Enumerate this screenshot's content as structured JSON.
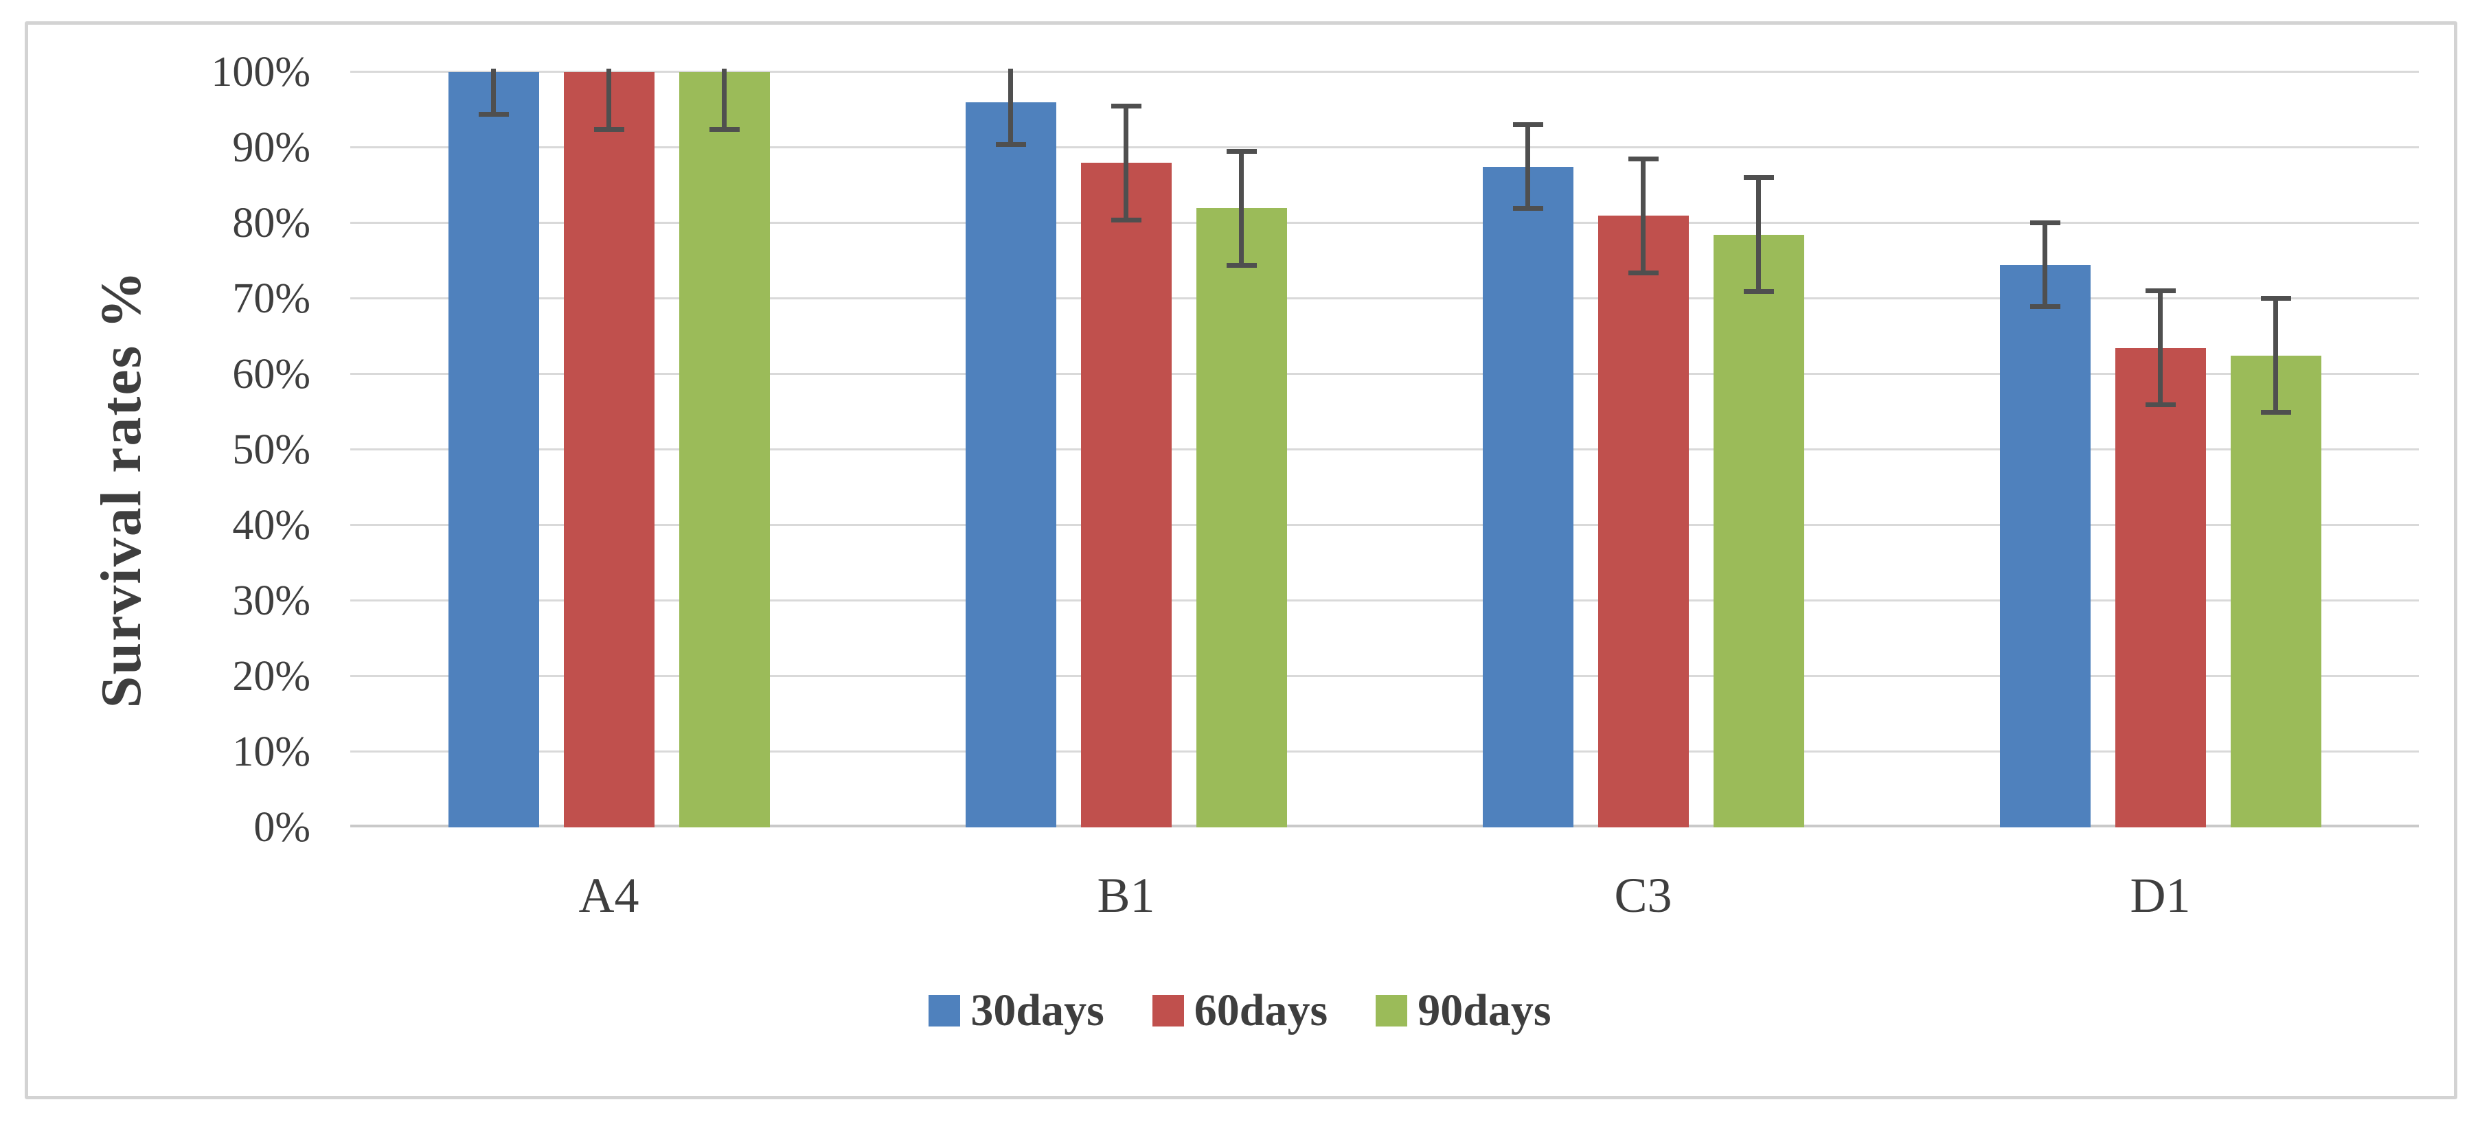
{
  "chart_data": {
    "type": "bar",
    "title": "",
    "ylabel": "Survival rates %",
    "xlabel": "",
    "categories": [
      "A4",
      "B1",
      "C3",
      "D1"
    ],
    "series": [
      {
        "name": "30days",
        "color": "#4F81BD",
        "values": [
          100,
          96,
          87.5,
          74.5
        ],
        "errors": [
          5.5,
          5.5,
          5.5,
          5.5
        ]
      },
      {
        "name": "60days",
        "color": "#C0504D",
        "values": [
          100,
          88,
          81,
          63.5
        ],
        "errors": [
          7.5,
          7.5,
          7.5,
          7.5
        ]
      },
      {
        "name": "90days",
        "color": "#9BBB59",
        "values": [
          100,
          82,
          78.5,
          62.5
        ],
        "errors": [
          7.5,
          7.5,
          7.5,
          7.5
        ]
      }
    ],
    "y_ticks": [
      "100%",
      "90%",
      "80%",
      "70%",
      "60%",
      "50%",
      "40%",
      "30%",
      "20%",
      "10%",
      "0%"
    ],
    "ylim": [
      0,
      100
    ],
    "grid": true,
    "gridline_color": "#D9D9D9",
    "error_bar_color": "#4F4F4F",
    "legend_position": "bottom"
  }
}
